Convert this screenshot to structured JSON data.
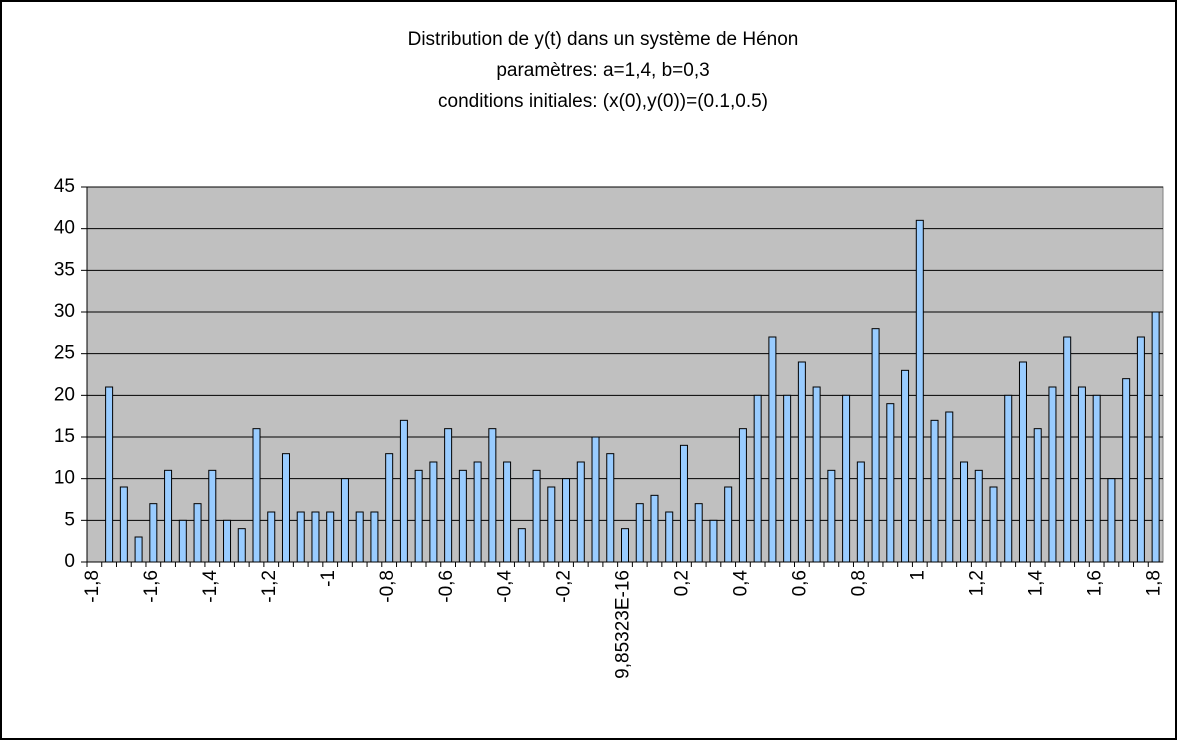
{
  "chart_data": {
    "type": "bar",
    "title": "Distribution de y(t) dans un système de Hénon",
    "subtitle": [
      "paramètres: a=1,4, b=0,3",
      "conditions initiales: (x(0),y(0))=(0.1,0.5)"
    ],
    "categories": [
      "-1,8",
      null,
      null,
      null,
      "-1,6",
      null,
      null,
      null,
      "-1,4",
      null,
      null,
      null,
      "-1,2",
      null,
      null,
      null,
      "-1",
      null,
      null,
      null,
      "-0,8",
      null,
      null,
      null,
      "-0,6",
      null,
      null,
      null,
      "-0,4",
      null,
      null,
      null,
      "-0,2",
      null,
      null,
      null,
      "9,85323E-16",
      null,
      null,
      null,
      "0,2",
      null,
      null,
      null,
      "0,4",
      null,
      null,
      null,
      "0,6",
      null,
      null,
      null,
      "0,8",
      null,
      null,
      null,
      "1",
      null,
      null,
      null,
      "1,2",
      null,
      null,
      null,
      "1,4",
      null,
      null,
      null,
      "1,6",
      null,
      null,
      null,
      "1,8"
    ],
    "values": [
      0,
      21,
      9,
      3,
      7,
      11,
      5,
      7,
      11,
      5,
      4,
      16,
      6,
      13,
      6,
      6,
      6,
      10,
      6,
      6,
      13,
      17,
      11,
      12,
      16,
      11,
      12,
      16,
      12,
      4,
      11,
      9,
      10,
      12,
      15,
      13,
      4,
      7,
      8,
      6,
      14,
      7,
      5,
      9,
      16,
      20,
      27,
      20,
      24,
      21,
      11,
      20,
      12,
      28,
      19,
      23,
      41,
      17,
      18,
      12,
      11,
      9,
      20,
      24,
      16,
      21,
      27,
      21,
      20,
      10,
      22,
      27,
      30
    ],
    "color": "#99ccff",
    "ylim": [
      0,
      45
    ],
    "yticks": [
      0,
      5,
      10,
      15,
      20,
      25,
      30,
      35,
      40,
      45
    ],
    "grid": true
  }
}
